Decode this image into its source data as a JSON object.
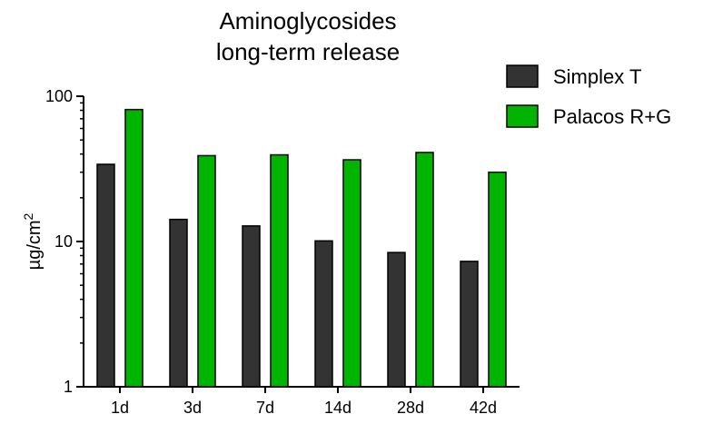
{
  "chart_data": {
    "type": "bar",
    "title_line1": "Aminoglycosides",
    "title_line2": "long-term release",
    "xlabel": "",
    "ylabel": "µg/cm",
    "ylabel_superscript": "2",
    "yscale": "log",
    "ylim": [
      1,
      100
    ],
    "yticks": [
      "1",
      "10",
      "100"
    ],
    "categories": [
      "1d",
      "3d",
      "7d",
      "14d",
      "28d",
      "42d"
    ],
    "series": [
      {
        "name": "Simplex T",
        "color": "#333333",
        "values": [
          34,
          14.2,
          12.8,
          10.1,
          8.4,
          7.3
        ]
      },
      {
        "name": "Palacos R+G",
        "color": "#00b400",
        "values": [
          81,
          39,
          39.5,
          36.5,
          41,
          30
        ]
      }
    ],
    "legend_position": "top-right",
    "grid": false
  }
}
